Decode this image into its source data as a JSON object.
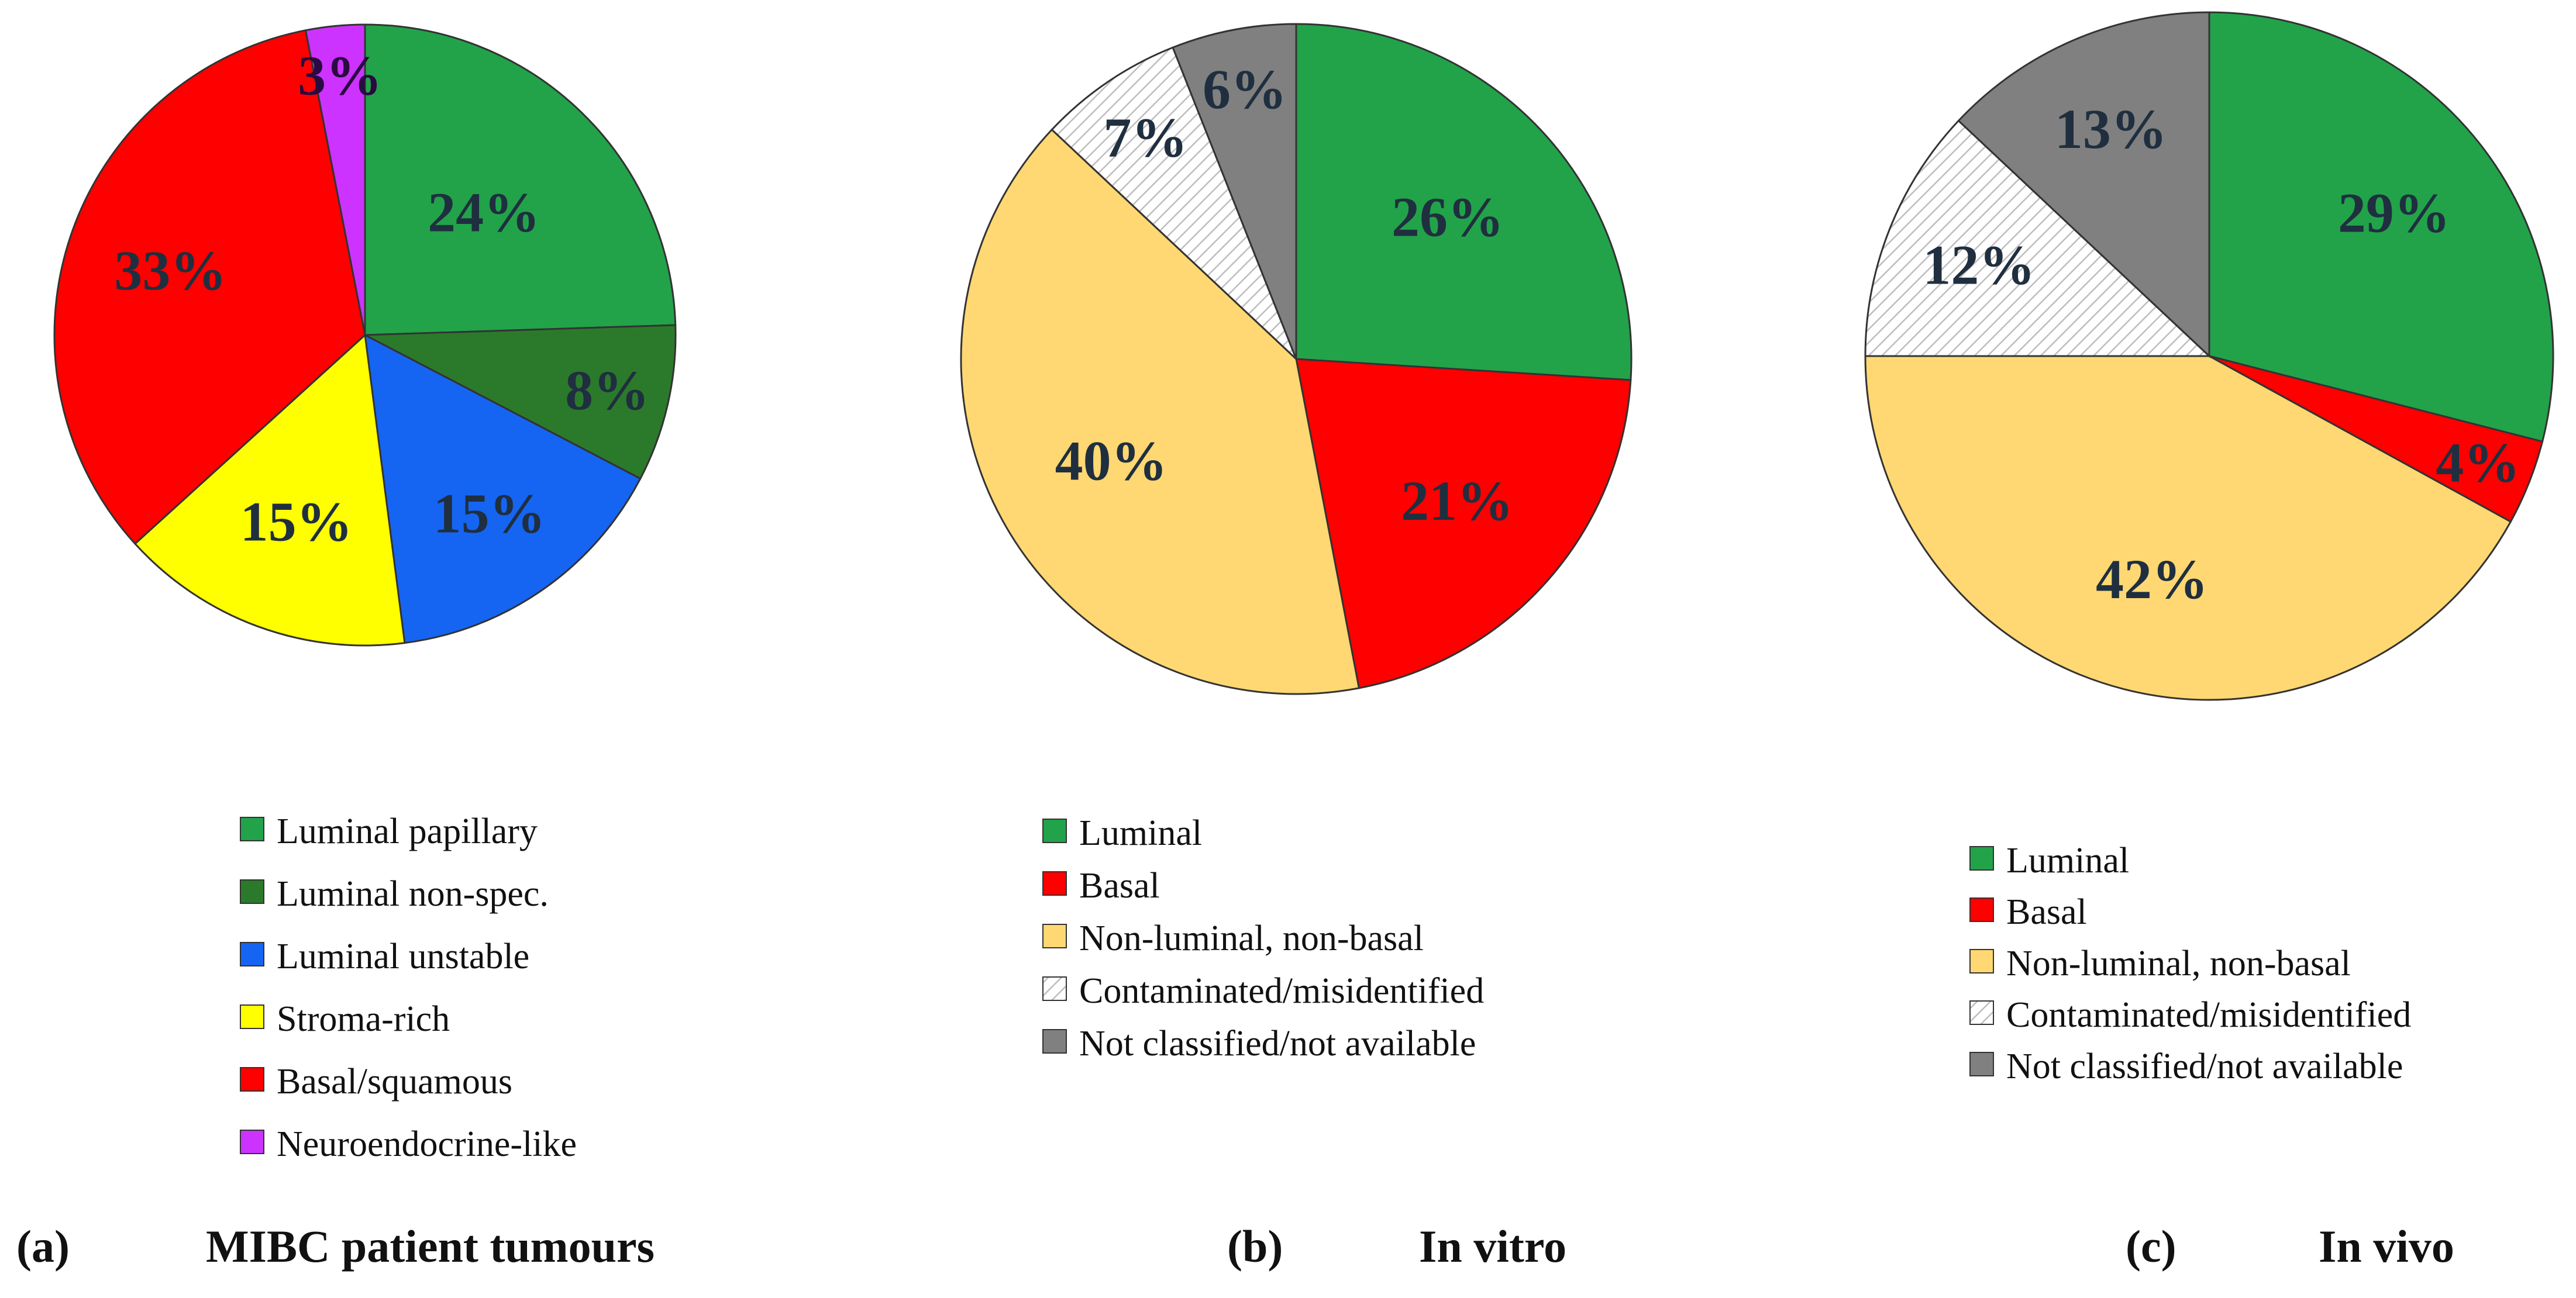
{
  "chart_data": [
    {
      "type": "pie",
      "panel": "(a)",
      "title": "MIBC patient tumours",
      "start": "12 o'clock, clockwise",
      "slices": [
        {
          "label": "Luminal papillary",
          "value": 24,
          "text": "24%",
          "color": "#22a34a"
        },
        {
          "label": "Luminal non-spec.",
          "value": 8,
          "text": "8%",
          "color": "#2b7a2b"
        },
        {
          "label": "Luminal unstable",
          "value": 15,
          "text": "15%",
          "color": "#1565f2"
        },
        {
          "label": "Stroma-rich",
          "value": 15,
          "text": "15%",
          "color": "#ffff00"
        },
        {
          "label": "Basal/squamous",
          "value": 33,
          "text": "33%",
          "color": "#ff0000"
        },
        {
          "label": "Neuroendocrine-like",
          "value": 3,
          "text": "3%",
          "color": "#cc33ff"
        }
      ]
    },
    {
      "type": "pie",
      "panel": "(b)",
      "title": "In vitro",
      "start": "12 o'clock, clockwise",
      "slices": [
        {
          "label": "Luminal",
          "value": 26,
          "text": "26%",
          "color": "#22a34a"
        },
        {
          "label": "Basal",
          "value": 21,
          "text": "21%",
          "color": "#ff0000"
        },
        {
          "label": "Non-luminal, non-basal",
          "value": 40,
          "text": "40%",
          "color": "#ffd873"
        },
        {
          "label": "Contaminated/misidentified",
          "value": 7,
          "text": "7%",
          "color": "hatch"
        },
        {
          "label": "Not classified/not available",
          "value": 6,
          "text": "6%",
          "color": "#808080"
        }
      ]
    },
    {
      "type": "pie",
      "panel": "(c)",
      "title": "In vivo",
      "start": "12 o'clock, clockwise",
      "slices": [
        {
          "label": "Luminal",
          "value": 29,
          "text": "29%",
          "color": "#22a34a"
        },
        {
          "label": "Basal",
          "value": 4,
          "text": "4%",
          "color": "#ff0000"
        },
        {
          "label": "Non-luminal, non-basal",
          "value": 42,
          "text": "42%",
          "color": "#ffd873"
        },
        {
          "label": "Contaminated/misidentified",
          "value": 12,
          "text": "12%",
          "color": "hatch"
        },
        {
          "label": "Not classified/not available",
          "value": 13,
          "text": "13%",
          "color": "#808080"
        }
      ]
    }
  ]
}
